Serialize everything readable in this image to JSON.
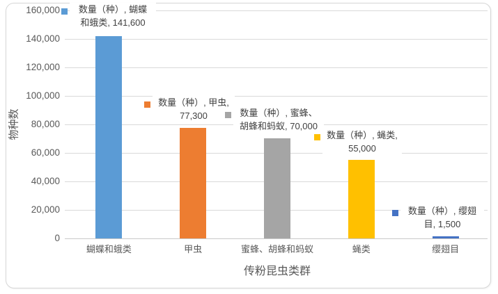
{
  "chart_data": {
    "type": "bar",
    "title": "",
    "xlabel": "传粉昆虫类群",
    "ylabel": "物种数",
    "ylim": [
      0,
      160000
    ],
    "ytick_step": 20000,
    "ytick_labels": [
      "0",
      "20,000",
      "40,000",
      "60,000",
      "80,000",
      "100,000",
      "120,000",
      "140,000",
      "160,000"
    ],
    "grid": true,
    "legend_position": "none",
    "categories": [
      "蝴蝶和蛾类",
      "甲虫",
      "蜜蜂、胡蜂和蚂蚁",
      "蝇类",
      "缨翅目"
    ],
    "series": [
      {
        "name": "数量（种）, 蝴蝶和蛾类",
        "value": 141600,
        "value_label": "141,600",
        "color": "#5B9BD5",
        "label_lines": [
          "数量（种）, 蝴蝶",
          "和蛾类, 141,600"
        ]
      },
      {
        "name": "数量（种）, 甲虫",
        "value": 77300,
        "value_label": "77,300",
        "color": "#ED7D31",
        "label_lines": [
          "数量（种）, 甲虫,",
          "77,300"
        ]
      },
      {
        "name": "数量（种）, 蜜蜂、胡蜂和蚂蚁",
        "value": 70000,
        "value_label": "70,000",
        "color": "#A5A5A5",
        "label_lines": [
          "数量（种）, 蜜蜂、",
          "胡蜂和蚂蚁, 70,000"
        ]
      },
      {
        "name": "数量（种）, 蝇类",
        "value": 55000,
        "value_label": "55,000",
        "color": "#FFC000",
        "label_lines": [
          "数量（种）, 蝇类,",
          "55,000"
        ]
      },
      {
        "name": "数量（种）, 缨翅目",
        "value": 1500,
        "value_label": "1,500",
        "color": "#4472C4",
        "label_lines": [
          "数量（种）, 缨翅",
          "目, 1,500"
        ]
      }
    ],
    "colors": {
      "gridline": "#D9D9D9",
      "axis_line": "#C9C9C9",
      "tick_text": "#595959",
      "category_text": "#595959",
      "axis_title_text": "#595959",
      "data_label_text": "#404040",
      "frame_border": "#D6D6D6",
      "background": "#FFFFFF"
    }
  }
}
